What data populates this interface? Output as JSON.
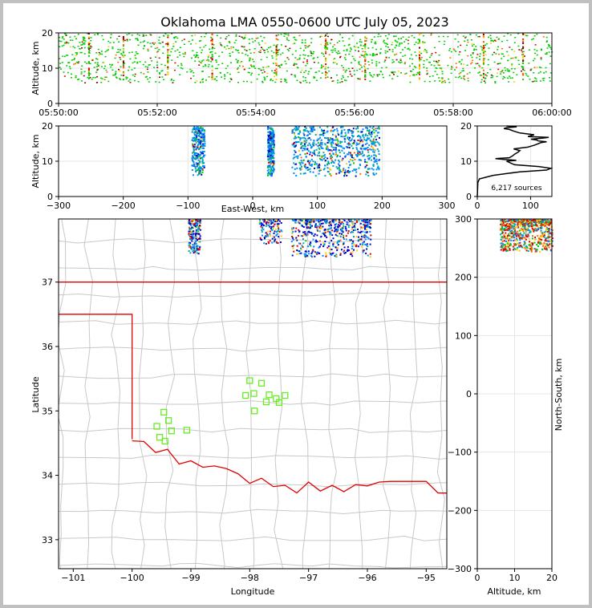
{
  "chart_data": [
    {
      "type": "scatter",
      "panel": "altitude-time",
      "title": "Oklahoma LMA 0550-0600 UTC July 05, 2023",
      "ylabel": "Altitude, km",
      "xlabel": "",
      "ylim": [
        0,
        20
      ],
      "xlim_minutes": [
        0,
        10
      ],
      "x_tick_labels": [
        "05:50:00",
        "05:52:00",
        "05:54:00",
        "05:56:00",
        "05:58:00",
        "06:00:00"
      ],
      "y_tick_labels": [
        "0",
        "10",
        "20"
      ]
    },
    {
      "type": "scatter",
      "panel": "altitude-eastwest",
      "xlabel": "East-West, km",
      "ylabel": "Altitude, km",
      "xlim": [
        -300,
        300
      ],
      "ylim": [
        0,
        20
      ],
      "x_tick_labels": [
        "−300",
        "−200",
        "−100",
        "0",
        "100",
        "200",
        "300"
      ],
      "y_tick_labels": [
        "0",
        "10",
        "20"
      ],
      "clusters": [
        {
          "x_range": [
            -95,
            -75
          ],
          "alt_range": [
            6,
            20
          ]
        },
        {
          "x_range": [
            22,
            32
          ],
          "alt_range": [
            6,
            20
          ]
        },
        {
          "x_range": [
            60,
            195
          ],
          "alt_range": [
            6,
            20
          ]
        }
      ]
    },
    {
      "type": "line",
      "panel": "altitude-histogram",
      "annotation": "6,217 sources",
      "xlim": [
        0,
        140
      ],
      "ylim": [
        0,
        20
      ],
      "x_tick_labels": [
        "0",
        "100"
      ],
      "y_tick_labels": [
        "0",
        "10",
        "20"
      ],
      "profile": [
        {
          "alt": 0,
          "count": 0
        },
        {
          "alt": 4,
          "count": 1
        },
        {
          "alt": 5,
          "count": 4
        },
        {
          "alt": 6,
          "count": 30
        },
        {
          "alt": 7,
          "count": 80
        },
        {
          "alt": 7.5,
          "count": 130
        },
        {
          "alt": 8,
          "count": 138
        },
        {
          "alt": 8.5,
          "count": 115
        },
        {
          "alt": 9,
          "count": 70
        },
        {
          "alt": 10,
          "count": 55
        },
        {
          "alt": 10.5,
          "count": 50
        },
        {
          "alt": 11,
          "count": 60
        },
        {
          "alt": 12,
          "count": 70
        },
        {
          "alt": 13,
          "count": 80
        },
        {
          "alt": 14,
          "count": 95
        },
        {
          "alt": 15,
          "count": 115
        },
        {
          "alt": 15.5,
          "count": 130
        },
        {
          "alt": 16,
          "count": 112
        },
        {
          "alt": 16.5,
          "count": 120
        },
        {
          "alt": 17,
          "count": 95
        },
        {
          "alt": 18,
          "count": 80
        },
        {
          "alt": 19,
          "count": 60
        },
        {
          "alt": 19.5,
          "count": 55
        },
        {
          "alt": 20,
          "count": 55
        }
      ]
    },
    {
      "type": "scatter",
      "panel": "plan-view",
      "xlabel": "Longitude",
      "ylabel": "Latitude",
      "xlim": [
        -101.25,
        -94.65
      ],
      "ylim": [
        32.55,
        37.98
      ],
      "x_tick_labels": [
        "−101",
        "−100",
        "−99",
        "−98",
        "−97",
        "−96",
        "−95"
      ],
      "y_tick_labels": [
        "33",
        "34",
        "35",
        "36",
        "37"
      ],
      "stations": [
        {
          "lon": -98.0,
          "lat": 35.47
        },
        {
          "lon": -97.8,
          "lat": 35.43
        },
        {
          "lon": -98.07,
          "lat": 35.24
        },
        {
          "lon": -97.93,
          "lat": 35.27
        },
        {
          "lon": -97.67,
          "lat": 35.25
        },
        {
          "lon": -97.4,
          "lat": 35.24
        },
        {
          "lon": -97.55,
          "lat": 35.19
        },
        {
          "lon": -97.72,
          "lat": 35.14
        },
        {
          "lon": -97.5,
          "lat": 35.13
        },
        {
          "lon": -97.92,
          "lat": 35.0
        },
        {
          "lon": -99.46,
          "lat": 34.98
        },
        {
          "lon": -99.38,
          "lat": 34.85
        },
        {
          "lon": -99.58,
          "lat": 34.76
        },
        {
          "lon": -99.33,
          "lat": 34.69
        },
        {
          "lon": -99.07,
          "lat": 34.7
        },
        {
          "lon": -99.53,
          "lat": 34.59
        },
        {
          "lon": -99.44,
          "lat": 34.53
        }
      ]
    },
    {
      "type": "scatter",
      "panel": "altitude-northsouth",
      "xlabel": "Altitude, km",
      "ylabel": "North-South, km",
      "xlim": [
        0,
        20
      ],
      "ylim": [
        -300,
        300
      ],
      "x_tick_labels": [
        "0",
        "10",
        "20"
      ],
      "y_tick_labels": [
        "−300",
        "−200",
        "−100",
        "0",
        "100",
        "200",
        "300"
      ]
    }
  ],
  "colors": {
    "background": "#c0c0c0",
    "state_border": "#e00000",
    "county_lines": "#c8c8c8",
    "station": "#66ee22",
    "axis": "#000000",
    "source_palette": [
      "#0000cc",
      "#0088ff",
      "#00aaaa",
      "#00cc00",
      "#88dd00",
      "#ffcc00",
      "#ff6600",
      "#dd0000",
      "#880000"
    ]
  }
}
